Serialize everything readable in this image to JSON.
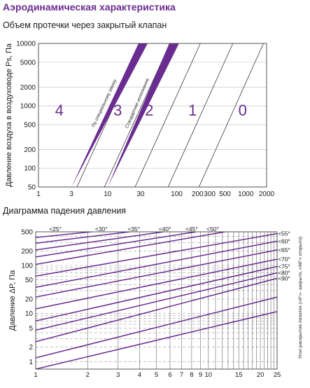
{
  "header": {
    "title": "Аэродинамическая характеристика",
    "chart1_title": "Объем протечки через закрытый клапан",
    "chart2_title": "Диаграмма падения давления"
  },
  "chart_data": [
    {
      "type": "line",
      "title": "Объем протечки через закрытый клапан",
      "ylabel": "Давление воздуха в воздуховоде Ps, Па",
      "xlabel": "",
      "x_scale": "log",
      "y_scale": "log",
      "xlim": [
        1,
        2000
      ],
      "ylim": [
        50,
        10000
      ],
      "x_ticks": [
        "1",
        "3",
        "10",
        "30",
        "100",
        "200",
        "300",
        "500",
        "1000",
        "2000"
      ],
      "y_ticks": [
        "50",
        "100",
        "200",
        "500",
        "1000",
        "2000",
        "5000",
        "10000"
      ],
      "class_lines": [
        {
          "x": [
            3.6,
            32
          ],
          "y": [
            50,
            10000
          ]
        },
        {
          "x": [
            9,
            80
          ],
          "y": [
            50,
            10000
          ]
        },
        {
          "x": [
            25,
            220
          ],
          "y": [
            50,
            10000
          ]
        },
        {
          "x": [
            75,
            650
          ],
          "y": [
            50,
            10000
          ]
        },
        {
          "x": [
            210,
            1800
          ],
          "y": [
            50,
            10000
          ]
        }
      ],
      "class_labels": [
        {
          "text": "4",
          "x": 2.0,
          "y": 700
        },
        {
          "text": "3",
          "x": 14,
          "y": 700
        },
        {
          "text": "2",
          "x": 40,
          "y": 700
        },
        {
          "text": "1",
          "x": 170,
          "y": 700
        },
        {
          "text": "0",
          "x": 900,
          "y": 700
        }
      ],
      "bands": [
        {
          "name": "По специальному заказу",
          "color": "#6a2c91",
          "upper": {
            "x": [
              3,
              28
            ],
            "y": [
              50,
              10000
            ]
          },
          "lower": {
            "x": [
              3,
              38
            ],
            "y": [
              50,
              10000
            ]
          }
        },
        {
          "name": "Стандартное исполнение",
          "color": "#6a2c91",
          "upper": {
            "x": [
              10,
              78
            ],
            "y": [
              50,
              10000
            ]
          },
          "lower": {
            "x": [
              10,
              108
            ],
            "y": [
              50,
              10000
            ]
          }
        }
      ]
    },
    {
      "type": "line",
      "title": "Диаграмма падения давления",
      "ylabel": "Давление ΔP, Па",
      "y2label": "Угол раскрытия лопаток («0°»- закрыто, «90°» открыто)",
      "x_scale": "log",
      "y_scale": "log",
      "xlim": [
        1,
        25
      ],
      "ylim": [
        0.7,
        500
      ],
      "x_ticks": [
        "1",
        "2",
        "3",
        "4",
        "5",
        "6",
        "7",
        "8",
        "9",
        "10",
        "15",
        "20",
        "25"
      ],
      "y_ticks": [
        "1",
        "2",
        "5",
        "10",
        "20",
        "50",
        "100",
        "200",
        "500"
      ],
      "color": "#6a2c91",
      "angle_labels": [
        "<25°",
        "<30°",
        "<35°",
        "<40°",
        "<45°",
        "<50°",
        "<55°",
        "<60°",
        "<65°",
        "<70°",
        "<75°",
        "<80°",
        "<90°"
      ],
      "top_angle_x": [
        1.3,
        2.4,
        3.7,
        5.6,
        8.0,
        10.6
      ],
      "right_angle_y": [
        460,
        320,
        210,
        135,
        95,
        70,
        54
      ],
      "series": [
        {
          "x": [
            1,
            2.1
          ],
          "y": [
            380,
            500
          ]
        },
        {
          "x": [
            1,
            3.5
          ],
          "y": [
            290,
            500
          ]
        },
        {
          "x": [
            1,
            5.5
          ],
          "y": [
            210,
            500
          ]
        },
        {
          "x": [
            1,
            8.5
          ],
          "y": [
            150,
            500
          ]
        },
        {
          "x": [
            1,
            12.5
          ],
          "y": [
            105,
            500
          ]
        },
        {
          "x": [
            1,
            25
          ],
          "y": [
            60,
            460
          ]
        },
        {
          "x": [
            1,
            25
          ],
          "y": [
            35,
            320
          ]
        },
        {
          "x": [
            1,
            25
          ],
          "y": [
            22,
            210
          ]
        },
        {
          "x": [
            1,
            25
          ],
          "y": [
            12.5,
            135
          ]
        },
        {
          "x": [
            1,
            25
          ],
          "y": [
            7,
            95
          ]
        },
        {
          "x": [
            1,
            25
          ],
          "y": [
            4.5,
            70
          ]
        },
        {
          "x": [
            1,
            25
          ],
          "y": [
            2.6,
            54
          ]
        },
        {
          "x": [
            1,
            25
          ],
          "y": [
            1.2,
            22
          ]
        },
        {
          "x": [
            1,
            25
          ],
          "y": [
            0.7,
            11
          ]
        }
      ]
    }
  ]
}
